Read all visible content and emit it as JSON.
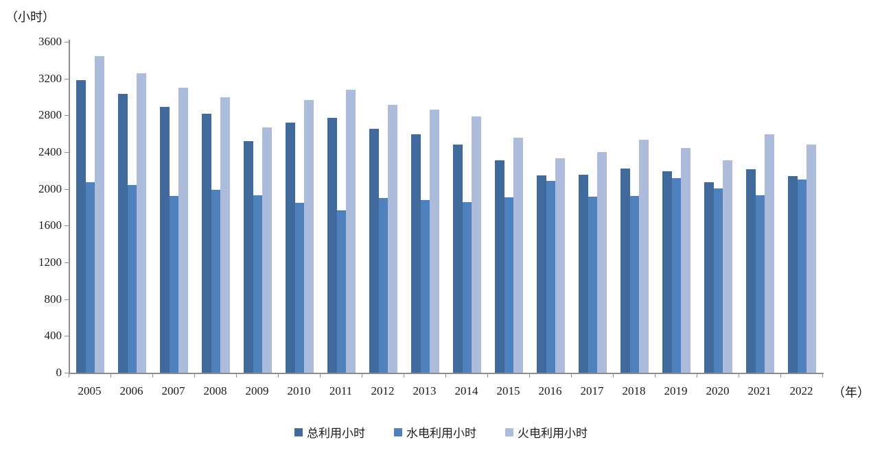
{
  "chart_data": {
    "type": "bar",
    "title": "",
    "y_unit_label": "（小时）",
    "x_unit_label": "（年）",
    "xlabel": "",
    "ylabel": "",
    "ylim": [
      0,
      3600
    ],
    "y_ticks": [
      0,
      400,
      800,
      1200,
      1600,
      2000,
      2400,
      2800,
      3200,
      3600
    ],
    "grid": false,
    "legend_position": "bottom",
    "categories": [
      "2005",
      "2006",
      "2007",
      "2008",
      "2009",
      "2010",
      "2011",
      "2012",
      "2013",
      "2014",
      "2015",
      "2016",
      "2017",
      "2018",
      "2019",
      "2020",
      "2021",
      "2022"
    ],
    "series": [
      {
        "name": "总利用小时",
        "color": "#40699C",
        "values": [
          3180,
          3030,
          2895,
          2815,
          2520,
          2720,
          2775,
          2650,
          2595,
          2480,
          2310,
          2150,
          2155,
          2220,
          2190,
          2075,
          2215,
          2140
        ]
      },
      {
        "name": "水电利用小时",
        "color": "#4F81BD",
        "values": [
          2075,
          2040,
          1920,
          1990,
          1930,
          1850,
          1770,
          1900,
          1880,
          1855,
          1910,
          2085,
          1915,
          1925,
          2120,
          2005,
          1930,
          2100
        ]
      },
      {
        "name": "火电利用小时",
        "color": "#ADBCDB",
        "values": [
          3445,
          3255,
          3100,
          2995,
          2670,
          2970,
          3075,
          2915,
          2860,
          2790,
          2555,
          2335,
          2400,
          2535,
          2445,
          2310,
          2595,
          2485
        ]
      }
    ]
  },
  "colors": {
    "axis": "#8C8C8C",
    "text": "#1A1A1A"
  }
}
